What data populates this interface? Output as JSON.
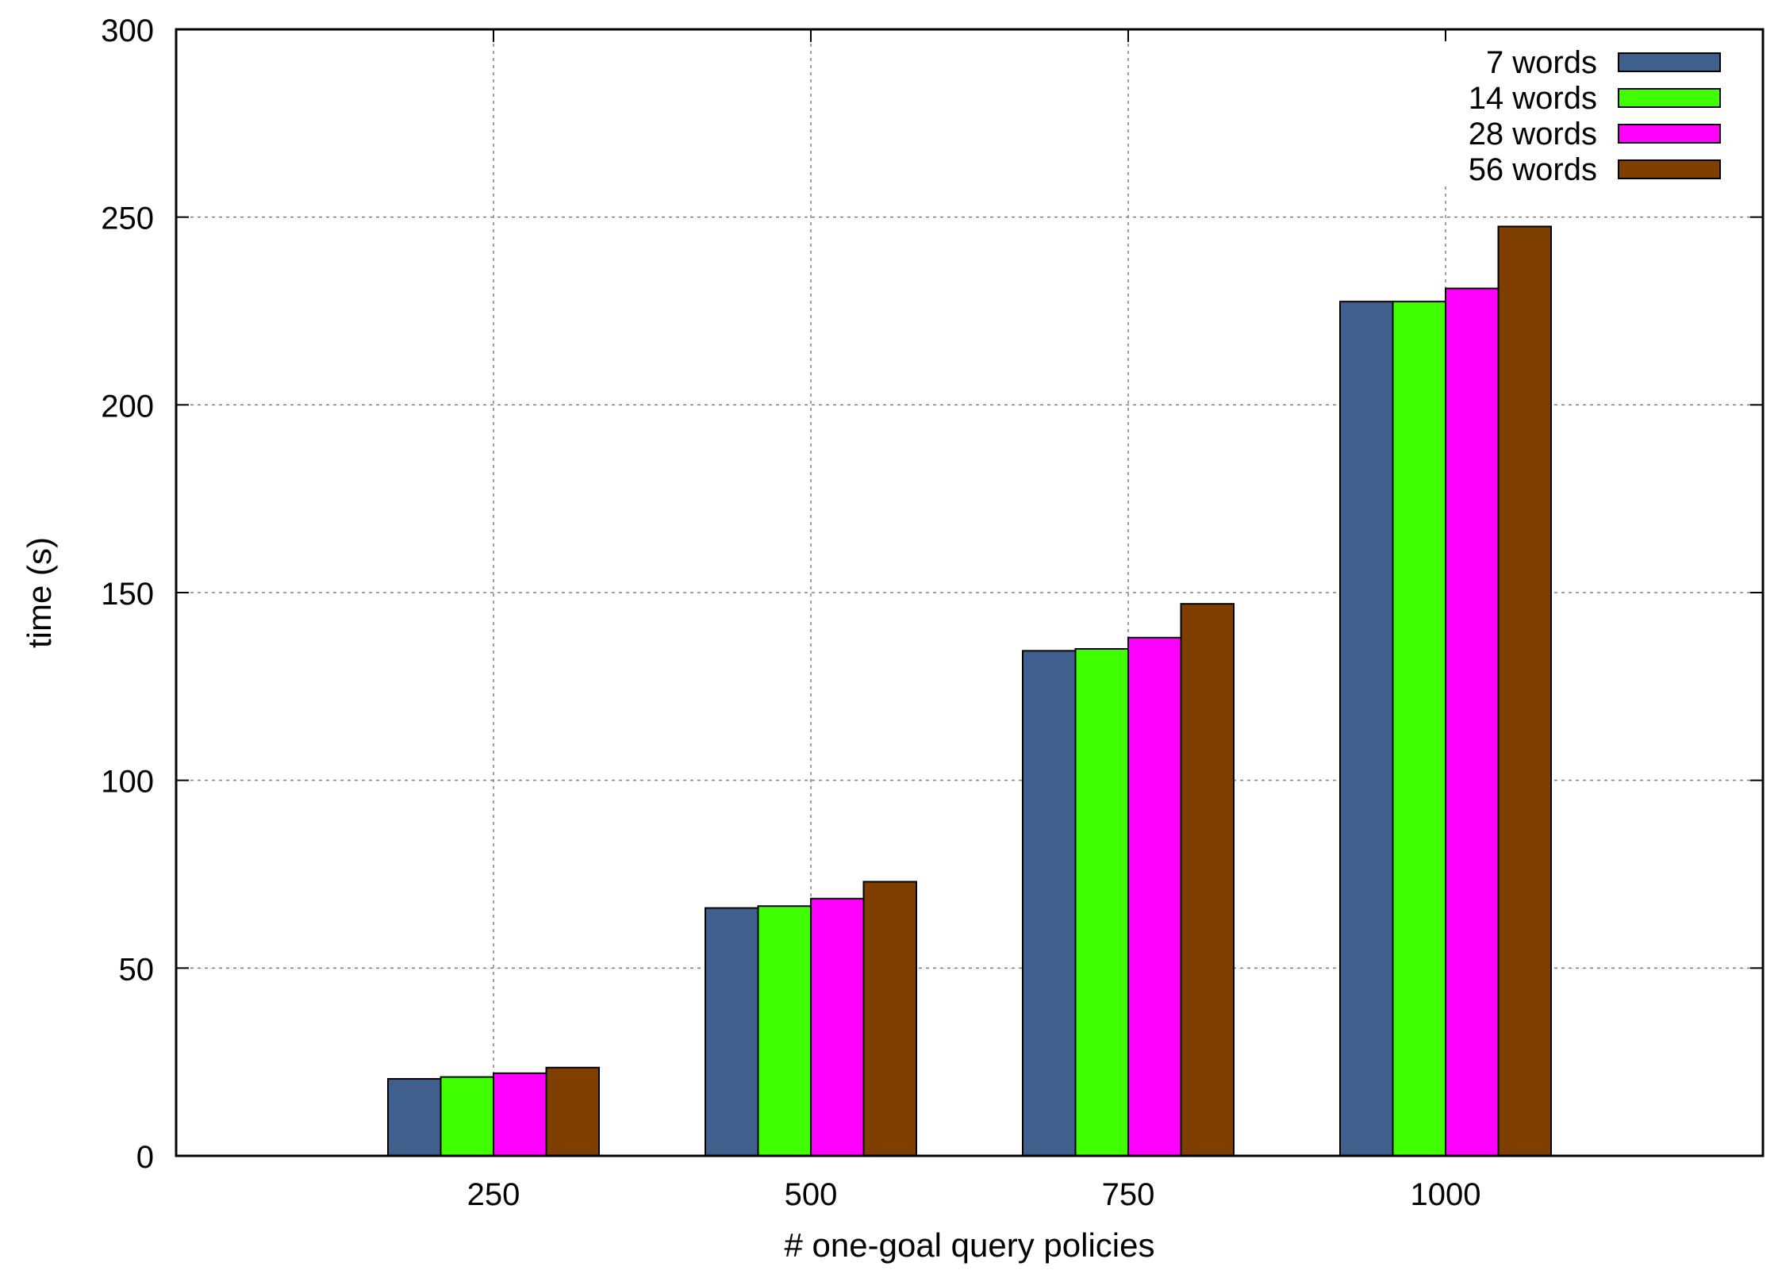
{
  "chart_data": {
    "type": "bar",
    "title": "",
    "xlabel": "# one-goal query policies",
    "ylabel": "time (s)",
    "categories": [
      "250",
      "500",
      "750",
      "1000"
    ],
    "ylim": [
      0,
      300
    ],
    "yticks": [
      "0",
      "50",
      "100",
      "150",
      "200",
      "250",
      "300"
    ],
    "grid": true,
    "legend_position": "top-right",
    "series": [
      {
        "name": "7 words",
        "color": "#3f5f8c",
        "values": [
          20.5,
          66,
          134.5,
          227.5
        ]
      },
      {
        "name": "14 words",
        "color": "#40ff00",
        "values": [
          21,
          66.5,
          135,
          227.5
        ]
      },
      {
        "name": "28 words",
        "color": "#ff00ff",
        "values": [
          22,
          68.5,
          138,
          231
        ]
      },
      {
        "name": "56 words",
        "color": "#7f3f00",
        "values": [
          23.5,
          73,
          147,
          247.5
        ]
      }
    ]
  }
}
